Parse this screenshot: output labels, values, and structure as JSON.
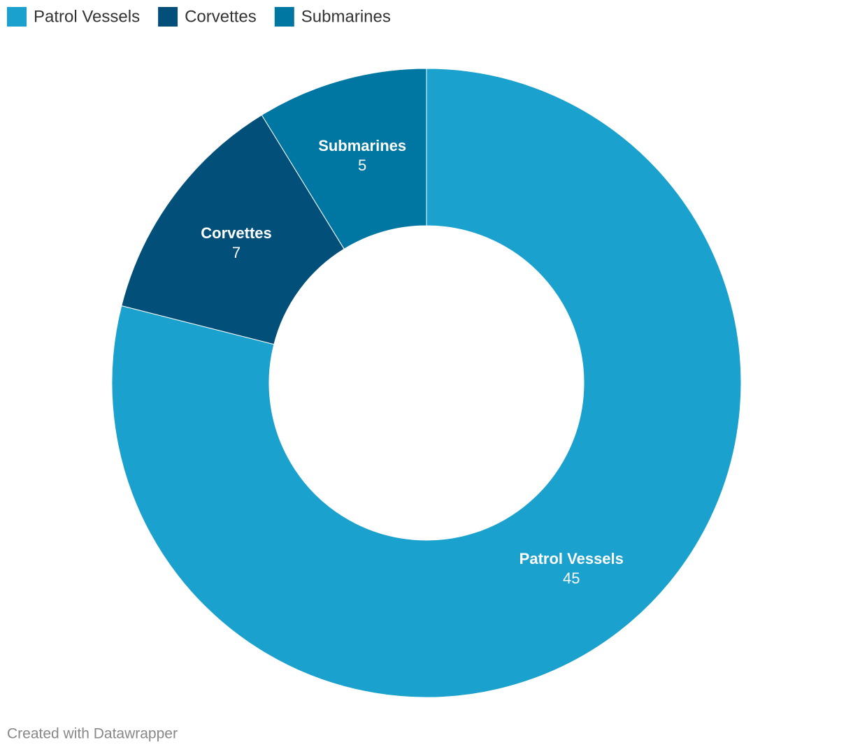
{
  "chart_data": {
    "type": "pie",
    "categories": [
      "Patrol Vessels",
      "Corvettes",
      "Submarines"
    ],
    "values": [
      45,
      7,
      5
    ],
    "colors": [
      "#1aa1cd",
      "#02507a",
      "#0076a3"
    ],
    "donut": true,
    "legend": "top-left"
  },
  "credit": "Created with Datawrapper"
}
